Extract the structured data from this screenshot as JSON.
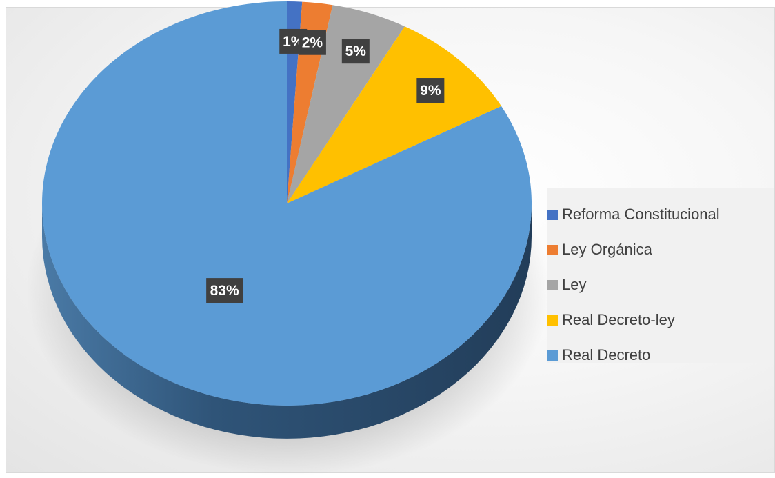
{
  "chart_data": {
    "type": "pie",
    "title": "",
    "style": "3d",
    "categories": [
      "Reforma Constitucional",
      "Ley Orgánica",
      "Ley",
      "Real Decreto-ley",
      "Real Decreto"
    ],
    "values": [
      1,
      2,
      5,
      9,
      83
    ],
    "labels": [
      "1%",
      "2%",
      "5%",
      "9%",
      "83%"
    ],
    "colors": [
      "#4472c4",
      "#ed7d31",
      "#a5a5a5",
      "#ffc000",
      "#5b9bd5"
    ],
    "legend_position": "right"
  }
}
